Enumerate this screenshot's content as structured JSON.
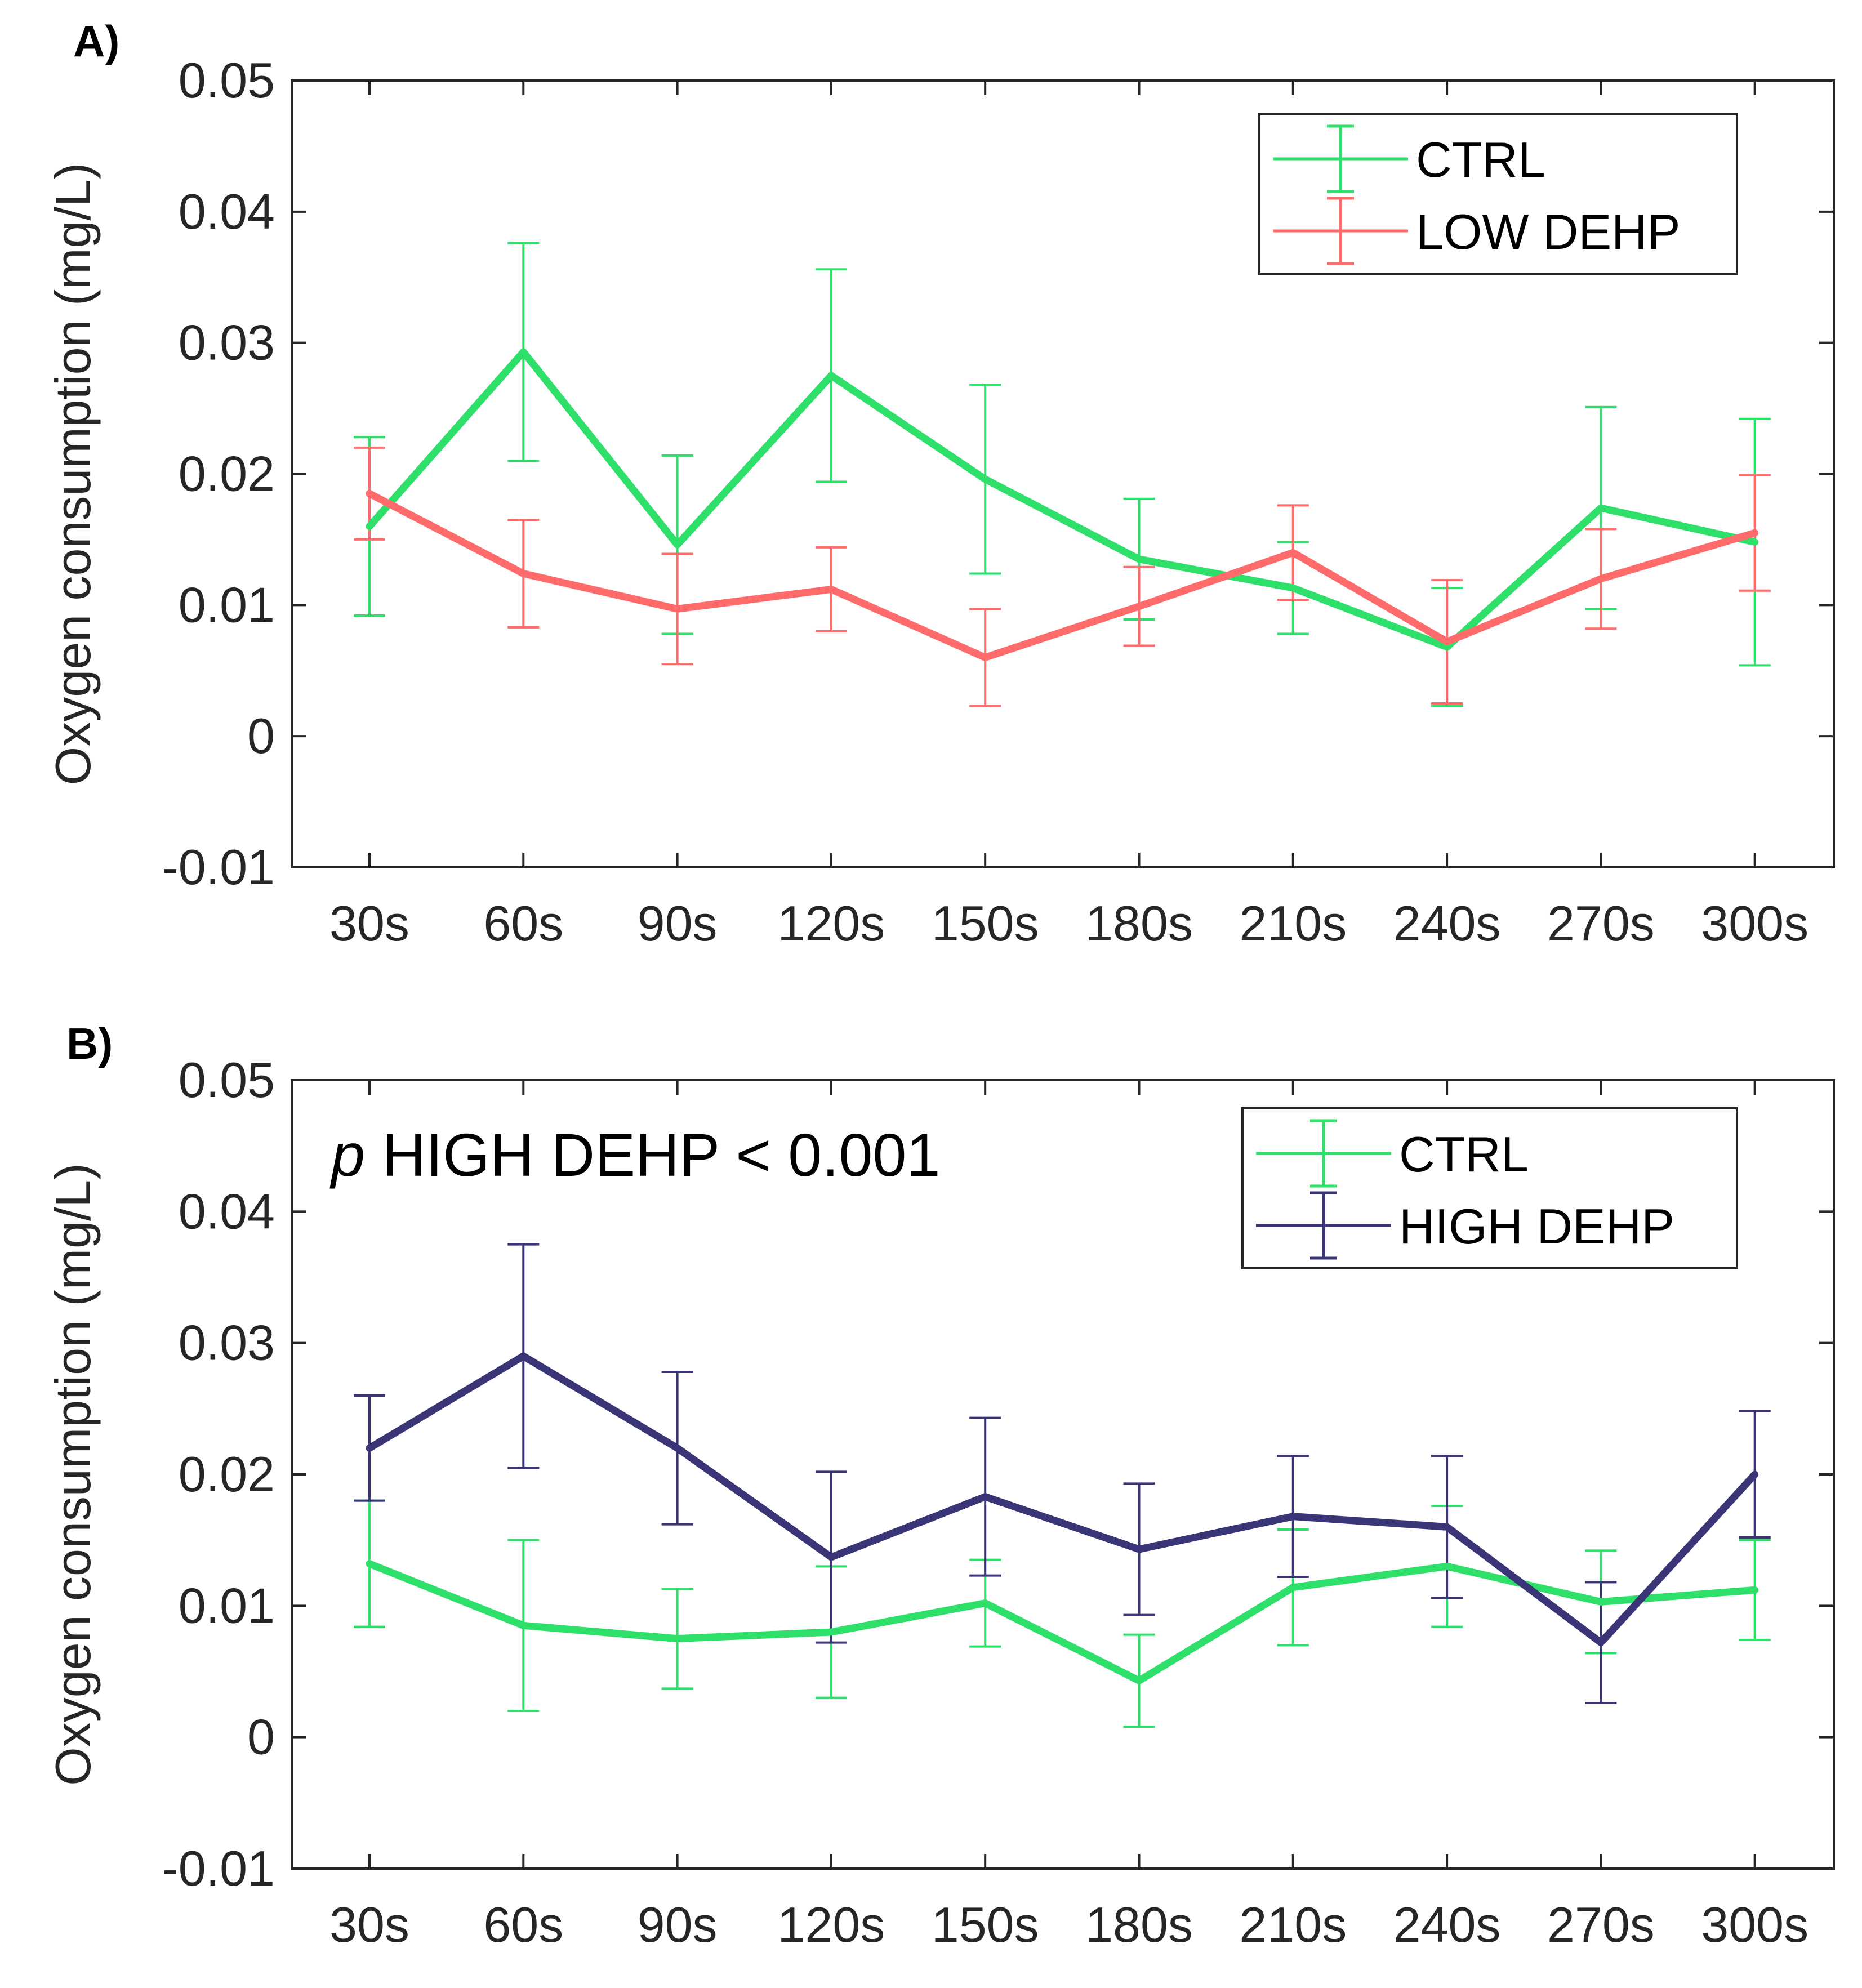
{
  "chart_data": [
    {
      "type": "line",
      "panel_label": "A)",
      "title": "",
      "xlabel": "",
      "ylabel": "Oxygen consumption (mg/L)",
      "categories": [
        "30s",
        "60s",
        "90s",
        "120s",
        "150s",
        "180s",
        "210s",
        "240s",
        "270s",
        "300s"
      ],
      "ylim": [
        -0.01,
        0.05
      ],
      "yticks": [
        "0.05",
        "0.04",
        "0.03",
        "0.02",
        "0.01",
        "0",
        "-0.01"
      ],
      "annotation": "",
      "legend_position": "top-right",
      "series": [
        {
          "name": "CTRL",
          "color": "#2ee06a",
          "values": [
            0.016,
            0.0293,
            0.0146,
            0.0275,
            0.0196,
            0.0135,
            0.0113,
            0.0068,
            0.0174,
            0.0148
          ],
          "error": [
            0.0068,
            0.0083,
            0.0068,
            0.0081,
            0.0072,
            0.0046,
            0.0035,
            0.0045,
            0.0077,
            0.0094
          ]
        },
        {
          "name": "LOW DEHP",
          "color": "#ff6b6b",
          "values": [
            0.0185,
            0.0124,
            0.0097,
            0.0112,
            0.006,
            0.0099,
            0.014,
            0.0072,
            0.012,
            0.0155
          ],
          "error": [
            0.0035,
            0.0041,
            0.0042,
            0.0032,
            0.0037,
            0.003,
            0.0036,
            0.0047,
            0.0038,
            0.0044
          ]
        }
      ]
    },
    {
      "type": "line",
      "panel_label": "B)",
      "title": "",
      "xlabel": "",
      "ylabel": "Oxygen consumption (mg/L)",
      "categories": [
        "30s",
        "60s",
        "90s",
        "120s",
        "150s",
        "180s",
        "210s",
        "240s",
        "270s",
        "300s"
      ],
      "ylim": [
        -0.01,
        0.05
      ],
      "yticks": [
        "0.05",
        "0.04",
        "0.03",
        "0.02",
        "0.01",
        "0",
        "-0.01"
      ],
      "annotation": {
        "italic": "p",
        "text": " HIGH DEHP < 0.001"
      },
      "legend_position": "top-right",
      "series": [
        {
          "name": "CTRL",
          "color": "#2ee06a",
          "values": [
            0.0132,
            0.0085,
            0.0075,
            0.008,
            0.0102,
            0.0043,
            0.0114,
            0.013,
            0.0103,
            0.0112
          ],
          "error": [
            0.0048,
            0.0065,
            0.0038,
            0.005,
            0.0033,
            0.0035,
            0.0044,
            0.0046,
            0.0039,
            0.0038
          ]
        },
        {
          "name": "HIGH DEHP",
          "color": "#3a3577",
          "values": [
            0.022,
            0.029,
            0.022,
            0.0137,
            0.0183,
            0.0143,
            0.0168,
            0.016,
            0.0072,
            0.02
          ],
          "error": [
            0.004,
            0.0085,
            0.0058,
            0.0065,
            0.006,
            0.005,
            0.0046,
            0.0054,
            0.0046,
            0.0048
          ]
        }
      ]
    }
  ]
}
